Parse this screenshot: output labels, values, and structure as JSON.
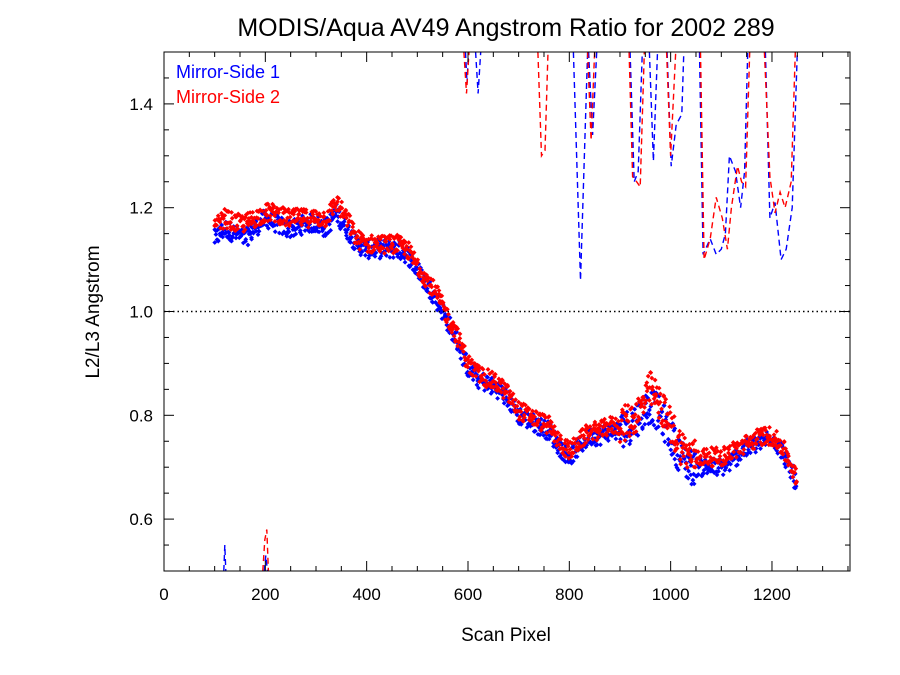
{
  "chart_data": {
    "type": "scatter",
    "title": "MODIS/Aqua AV49 Angstrom Ratio for 2002 289",
    "xlabel": "Scan Pixel",
    "ylabel": "L2/L3 Angstrom",
    "xlim": [
      0,
      1354
    ],
    "ylim": [
      0.5,
      1.5
    ],
    "xticks": [
      0,
      200,
      400,
      600,
      800,
      1000,
      1200
    ],
    "xtick_labels": [
      "0",
      "200",
      "400",
      "600",
      "800",
      "1000",
      "1200"
    ],
    "yticks": [
      0.6,
      0.8,
      1.0,
      1.2,
      1.4
    ],
    "ytick_labels": [
      "0.6",
      "0.8",
      "1.0",
      "1.2",
      "1.4"
    ],
    "x_minor_step": 50,
    "y_minor_step": 0.05,
    "reference_line": 1.0,
    "legend_position": "top-left",
    "legend": [
      {
        "label": "Mirror-Side 1",
        "color": "#0000ff"
      },
      {
        "label": "Mirror-Side 2",
        "color": "#ff0000"
      }
    ],
    "series": [
      {
        "name": "Mirror-Side 1",
        "color": "#0000ff",
        "points": [
          [
            100,
            1.14
          ],
          [
            120,
            1.16
          ],
          [
            140,
            1.15
          ],
          [
            160,
            1.14
          ],
          [
            180,
            1.16
          ],
          [
            200,
            1.18
          ],
          [
            220,
            1.17
          ],
          [
            240,
            1.16
          ],
          [
            260,
            1.16
          ],
          [
            280,
            1.17
          ],
          [
            300,
            1.17
          ],
          [
            320,
            1.16
          ],
          [
            340,
            1.19
          ],
          [
            360,
            1.16
          ],
          [
            380,
            1.13
          ],
          [
            400,
            1.12
          ],
          [
            420,
            1.12
          ],
          [
            440,
            1.12
          ],
          [
            460,
            1.12
          ],
          [
            480,
            1.11
          ],
          [
            500,
            1.08
          ],
          [
            520,
            1.05
          ],
          [
            540,
            1.02
          ],
          [
            560,
            0.98
          ],
          [
            580,
            0.94
          ],
          [
            600,
            0.89
          ],
          [
            620,
            0.87
          ],
          [
            640,
            0.86
          ],
          [
            660,
            0.85
          ],
          [
            680,
            0.83
          ],
          [
            700,
            0.8
          ],
          [
            720,
            0.79
          ],
          [
            740,
            0.78
          ],
          [
            760,
            0.77
          ],
          [
            780,
            0.74
          ],
          [
            800,
            0.72
          ],
          [
            820,
            0.74
          ],
          [
            840,
            0.76
          ],
          [
            860,
            0.76
          ],
          [
            880,
            0.77
          ],
          [
            900,
            0.77
          ],
          [
            920,
            0.78
          ],
          [
            940,
            0.8
          ],
          [
            960,
            0.82
          ],
          [
            980,
            0.8
          ],
          [
            1000,
            0.76
          ],
          [
            1020,
            0.72
          ],
          [
            1040,
            0.7
          ],
          [
            1060,
            0.7
          ],
          [
            1080,
            0.7
          ],
          [
            1100,
            0.7
          ],
          [
            1120,
            0.71
          ],
          [
            1140,
            0.73
          ],
          [
            1160,
            0.74
          ],
          [
            1180,
            0.75
          ],
          [
            1200,
            0.76
          ],
          [
            1220,
            0.73
          ],
          [
            1240,
            0.69
          ],
          [
            1250,
            0.66
          ]
        ],
        "dashed_spikes": [
          [
            [
              118,
              0.5
            ],
            [
              120,
              0.55
            ],
            [
              122,
              0.5
            ]
          ],
          [
            [
              198,
              0.5
            ],
            [
              201,
              0.53
            ],
            [
              204,
              0.5
            ]
          ],
          [
            [
              595,
              1.5
            ],
            [
              598,
              1.44
            ],
            [
              601,
              1.5
            ]
          ],
          [
            [
              615,
              1.5
            ],
            [
              620,
              1.42
            ],
            [
              625,
              1.5
            ]
          ],
          [
            [
              808,
              1.5
            ],
            [
              822,
              1.06
            ],
            [
              836,
              1.5
            ]
          ],
          [
            [
              838,
              1.5
            ],
            [
              846,
              1.34
            ],
            [
              854,
              1.5
            ]
          ],
          [
            [
              920,
              1.5
            ],
            [
              928,
              1.25
            ],
            [
              936,
              1.27
            ],
            [
              944,
              1.5
            ]
          ],
          [
            [
              958,
              1.5
            ],
            [
              966,
              1.29
            ],
            [
              974,
              1.5
            ]
          ],
          [
            [
              993,
              1.5
            ],
            [
              1001,
              1.28
            ],
            [
              1011,
              1.36
            ],
            [
              1022,
              1.38
            ],
            [
              1026,
              1.5
            ]
          ],
          [
            [
              1057,
              1.5
            ],
            [
              1064,
              1.11
            ],
            [
              1078,
              1.14
            ],
            [
              1090,
              1.11
            ],
            [
              1100,
              1.12
            ],
            [
              1108,
              1.15
            ],
            [
              1116,
              1.3
            ],
            [
              1128,
              1.27
            ],
            [
              1138,
              1.2
            ],
            [
              1146,
              1.27
            ],
            [
              1152,
              1.5
            ]
          ],
          [
            [
              1187,
              1.5
            ],
            [
              1196,
              1.18
            ],
            [
              1206,
              1.21
            ],
            [
              1218,
              1.1
            ],
            [
              1228,
              1.12
            ],
            [
              1240,
              1.2
            ],
            [
              1250,
              1.5
            ]
          ]
        ]
      },
      {
        "name": "Mirror-Side 2",
        "color": "#ff0000",
        "points": [
          [
            100,
            1.16
          ],
          [
            120,
            1.18
          ],
          [
            140,
            1.17
          ],
          [
            160,
            1.17
          ],
          [
            180,
            1.18
          ],
          [
            200,
            1.19
          ],
          [
            220,
            1.19
          ],
          [
            240,
            1.18
          ],
          [
            260,
            1.18
          ],
          [
            280,
            1.18
          ],
          [
            300,
            1.18
          ],
          [
            320,
            1.18
          ],
          [
            340,
            1.21
          ],
          [
            360,
            1.18
          ],
          [
            380,
            1.14
          ],
          [
            400,
            1.13
          ],
          [
            420,
            1.13
          ],
          [
            440,
            1.13
          ],
          [
            460,
            1.13
          ],
          [
            480,
            1.12
          ],
          [
            500,
            1.09
          ],
          [
            520,
            1.06
          ],
          [
            540,
            1.03
          ],
          [
            560,
            0.99
          ],
          [
            580,
            0.95
          ],
          [
            600,
            0.9
          ],
          [
            620,
            0.88
          ],
          [
            640,
            0.87
          ],
          [
            660,
            0.86
          ],
          [
            680,
            0.84
          ],
          [
            700,
            0.81
          ],
          [
            720,
            0.8
          ],
          [
            740,
            0.79
          ],
          [
            760,
            0.78
          ],
          [
            780,
            0.75
          ],
          [
            800,
            0.73
          ],
          [
            820,
            0.75
          ],
          [
            840,
            0.77
          ],
          [
            860,
            0.77
          ],
          [
            880,
            0.78
          ],
          [
            900,
            0.78
          ],
          [
            920,
            0.79
          ],
          [
            940,
            0.81
          ],
          [
            960,
            0.85
          ],
          [
            980,
            0.82
          ],
          [
            1000,
            0.78
          ],
          [
            1020,
            0.74
          ],
          [
            1040,
            0.72
          ],
          [
            1060,
            0.72
          ],
          [
            1080,
            0.72
          ],
          [
            1100,
            0.72
          ],
          [
            1120,
            0.73
          ],
          [
            1140,
            0.74
          ],
          [
            1160,
            0.75
          ],
          [
            1180,
            0.76
          ],
          [
            1200,
            0.76
          ],
          [
            1220,
            0.74
          ],
          [
            1240,
            0.7
          ],
          [
            1250,
            0.67
          ]
        ],
        "dashed_spikes": [
          [
            [
              195,
              0.5
            ],
            [
              199,
              0.56
            ],
            [
              203,
              0.58
            ],
            [
              206,
              0.5
            ]
          ],
          [
            [
              592,
              1.5
            ],
            [
              597,
              1.42
            ],
            [
              602,
              1.5
            ]
          ],
          [
            [
              738,
              1.5
            ],
            [
              745,
              1.3
            ],
            [
              752,
              1.31
            ],
            [
              758,
              1.5
            ]
          ],
          [
            [
              836,
              1.5
            ],
            [
              843,
              1.33
            ],
            [
              850,
              1.5
            ]
          ],
          [
            [
              918,
              1.5
            ],
            [
              925,
              1.26
            ],
            [
              933,
              1.25
            ],
            [
              940,
              1.24
            ],
            [
              948,
              1.5
            ]
          ],
          [
            [
              992,
              1.5
            ],
            [
              1000,
              1.3
            ],
            [
              1010,
              1.5
            ]
          ],
          [
            [
              1059,
              1.5
            ],
            [
              1066,
              1.1
            ],
            [
              1078,
              1.14
            ],
            [
              1090,
              1.22
            ],
            [
              1102,
              1.18
            ],
            [
              1112,
              1.12
            ],
            [
              1120,
              1.2
            ],
            [
              1132,
              1.28
            ],
            [
              1140,
              1.25
            ],
            [
              1148,
              1.24
            ],
            [
              1156,
              1.5
            ]
          ],
          [
            [
              1185,
              1.5
            ],
            [
              1196,
              1.26
            ],
            [
              1206,
              1.19
            ],
            [
              1216,
              1.23
            ],
            [
              1226,
              1.2
            ],
            [
              1238,
              1.25
            ],
            [
              1246,
              1.5
            ]
          ]
        ]
      }
    ]
  }
}
